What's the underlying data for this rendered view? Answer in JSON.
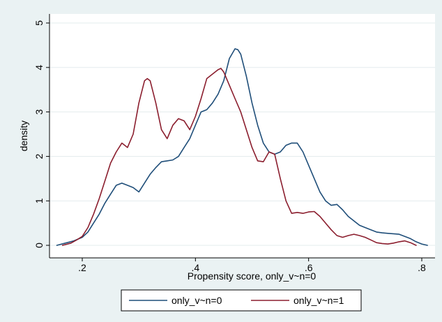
{
  "chart_data": {
    "type": "line",
    "title": "",
    "xlabel": "Propensity score, only_v~n=0",
    "ylabel": "density",
    "xlim": [
      0.15,
      0.82
    ],
    "ylim": [
      0,
      5
    ],
    "xticks": [
      0.2,
      0.4,
      0.6,
      0.8
    ],
    "xtick_labels": [
      ".2",
      ".4",
      ".6",
      ".8"
    ],
    "yticks": [
      0,
      1,
      2,
      3,
      4,
      5
    ],
    "ytick_labels": [
      "0",
      "1",
      "2",
      "3",
      "4",
      "5"
    ],
    "grid": "horizontal",
    "legend_position": "bottom",
    "colors": {
      "series0": "#1f4e79",
      "series1": "#8b1e2e"
    },
    "series": [
      {
        "name": "only_v~n=0",
        "x": [
          0.155,
          0.17,
          0.185,
          0.2,
          0.21,
          0.22,
          0.23,
          0.24,
          0.25,
          0.26,
          0.27,
          0.28,
          0.29,
          0.3,
          0.31,
          0.32,
          0.33,
          0.34,
          0.35,
          0.36,
          0.37,
          0.38,
          0.39,
          0.4,
          0.41,
          0.42,
          0.43,
          0.44,
          0.45,
          0.46,
          0.47,
          0.475,
          0.48,
          0.49,
          0.5,
          0.51,
          0.52,
          0.53,
          0.54,
          0.55,
          0.56,
          0.57,
          0.58,
          0.59,
          0.6,
          0.61,
          0.62,
          0.63,
          0.64,
          0.65,
          0.66,
          0.67,
          0.68,
          0.69,
          0.7,
          0.71,
          0.72,
          0.73,
          0.74,
          0.75,
          0.76,
          0.77,
          0.78,
          0.79,
          0.8,
          0.81
        ],
        "y": [
          0.0,
          0.05,
          0.1,
          0.18,
          0.3,
          0.5,
          0.7,
          0.95,
          1.15,
          1.35,
          1.4,
          1.35,
          1.3,
          1.2,
          1.4,
          1.6,
          1.75,
          1.88,
          1.9,
          1.92,
          2.0,
          2.2,
          2.4,
          2.7,
          3.0,
          3.05,
          3.2,
          3.4,
          3.7,
          4.2,
          4.42,
          4.4,
          4.3,
          3.8,
          3.2,
          2.7,
          2.3,
          2.1,
          2.05,
          2.1,
          2.25,
          2.3,
          2.3,
          2.1,
          1.8,
          1.5,
          1.2,
          1.0,
          0.9,
          0.92,
          0.8,
          0.65,
          0.55,
          0.45,
          0.4,
          0.35,
          0.3,
          0.28,
          0.27,
          0.26,
          0.25,
          0.2,
          0.15,
          0.08,
          0.03,
          0.0
        ]
      },
      {
        "name": "only_v~n=1",
        "x": [
          0.165,
          0.18,
          0.19,
          0.2,
          0.21,
          0.22,
          0.23,
          0.24,
          0.25,
          0.26,
          0.27,
          0.28,
          0.29,
          0.3,
          0.31,
          0.315,
          0.32,
          0.33,
          0.34,
          0.35,
          0.36,
          0.37,
          0.38,
          0.39,
          0.4,
          0.41,
          0.42,
          0.43,
          0.44,
          0.445,
          0.45,
          0.46,
          0.47,
          0.48,
          0.49,
          0.5,
          0.51,
          0.52,
          0.53,
          0.54,
          0.55,
          0.56,
          0.57,
          0.58,
          0.59,
          0.6,
          0.61,
          0.62,
          0.63,
          0.64,
          0.65,
          0.66,
          0.67,
          0.68,
          0.69,
          0.7,
          0.71,
          0.72,
          0.73,
          0.74,
          0.75,
          0.76,
          0.77,
          0.78,
          0.79
        ],
        "y": [
          0.0,
          0.05,
          0.12,
          0.2,
          0.4,
          0.7,
          1.05,
          1.45,
          1.85,
          2.1,
          2.3,
          2.2,
          2.5,
          3.2,
          3.7,
          3.75,
          3.7,
          3.2,
          2.6,
          2.4,
          2.7,
          2.85,
          2.8,
          2.6,
          2.9,
          3.3,
          3.75,
          3.85,
          3.95,
          3.98,
          3.9,
          3.6,
          3.3,
          3.0,
          2.6,
          2.2,
          1.9,
          1.88,
          2.1,
          2.05,
          1.5,
          1.0,
          0.72,
          0.74,
          0.72,
          0.75,
          0.76,
          0.65,
          0.5,
          0.35,
          0.22,
          0.18,
          0.22,
          0.25,
          0.22,
          0.18,
          0.12,
          0.06,
          0.04,
          0.03,
          0.05,
          0.08,
          0.1,
          0.06,
          0.0
        ]
      }
    ]
  }
}
